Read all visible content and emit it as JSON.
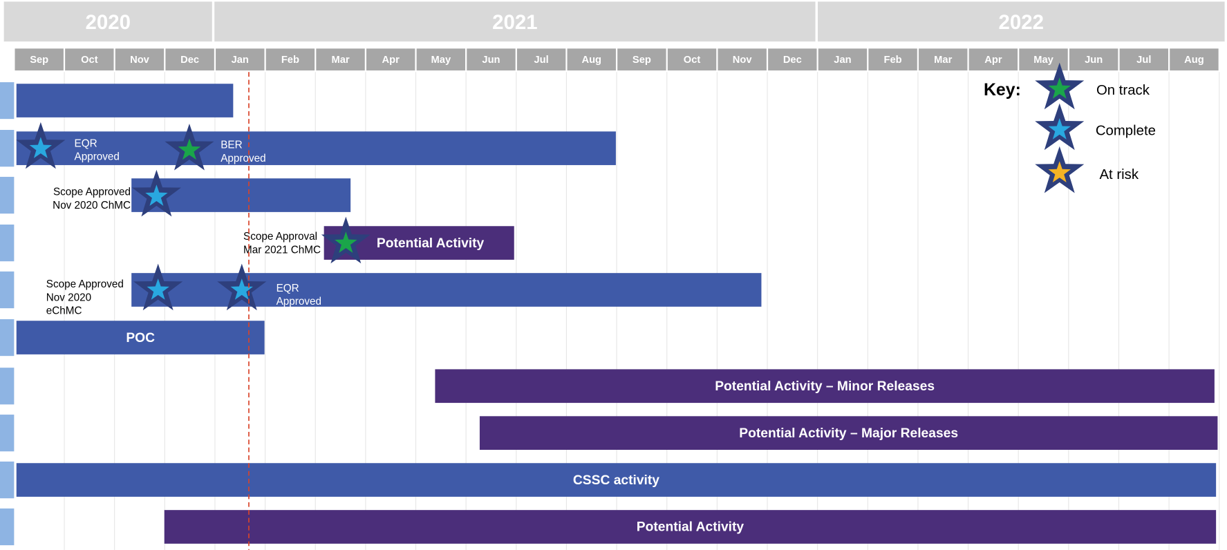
{
  "years": [
    "2020",
    "2021",
    "2022"
  ],
  "months": [
    "Sep",
    "Oct",
    "Nov",
    "Dec",
    "Jan",
    "Feb",
    "Mar",
    "Apr",
    "May",
    "Jun",
    "Jul",
    "Aug",
    "Sep",
    "Oct",
    "Nov",
    "Dec",
    "Jan",
    "Feb",
    "Mar",
    "Apr",
    "May",
    "Jun",
    "Jul",
    "Aug"
  ],
  "bar_texts": [
    "Potential Activity",
    "POC",
    "Potential Activity – Minor Releases",
    "Potential Activity – Major Releases",
    "CSSC activity",
    "Potential Activity"
  ],
  "notes": [
    [
      "EQR",
      "Approved"
    ],
    [
      "BER",
      "Approved"
    ],
    [
      "Scope Approved",
      "Nov 2020 ChMC"
    ],
    [
      "Scope Approval",
      "Mar 2021 ChMC"
    ],
    [
      "Scope Approved",
      "Nov 2020",
      "eChMC"
    ],
    [
      "EQR",
      "Approved"
    ]
  ],
  "key": {
    "title": "Key:",
    "items": [
      "On track",
      "Complete",
      "At risk"
    ]
  }
}
